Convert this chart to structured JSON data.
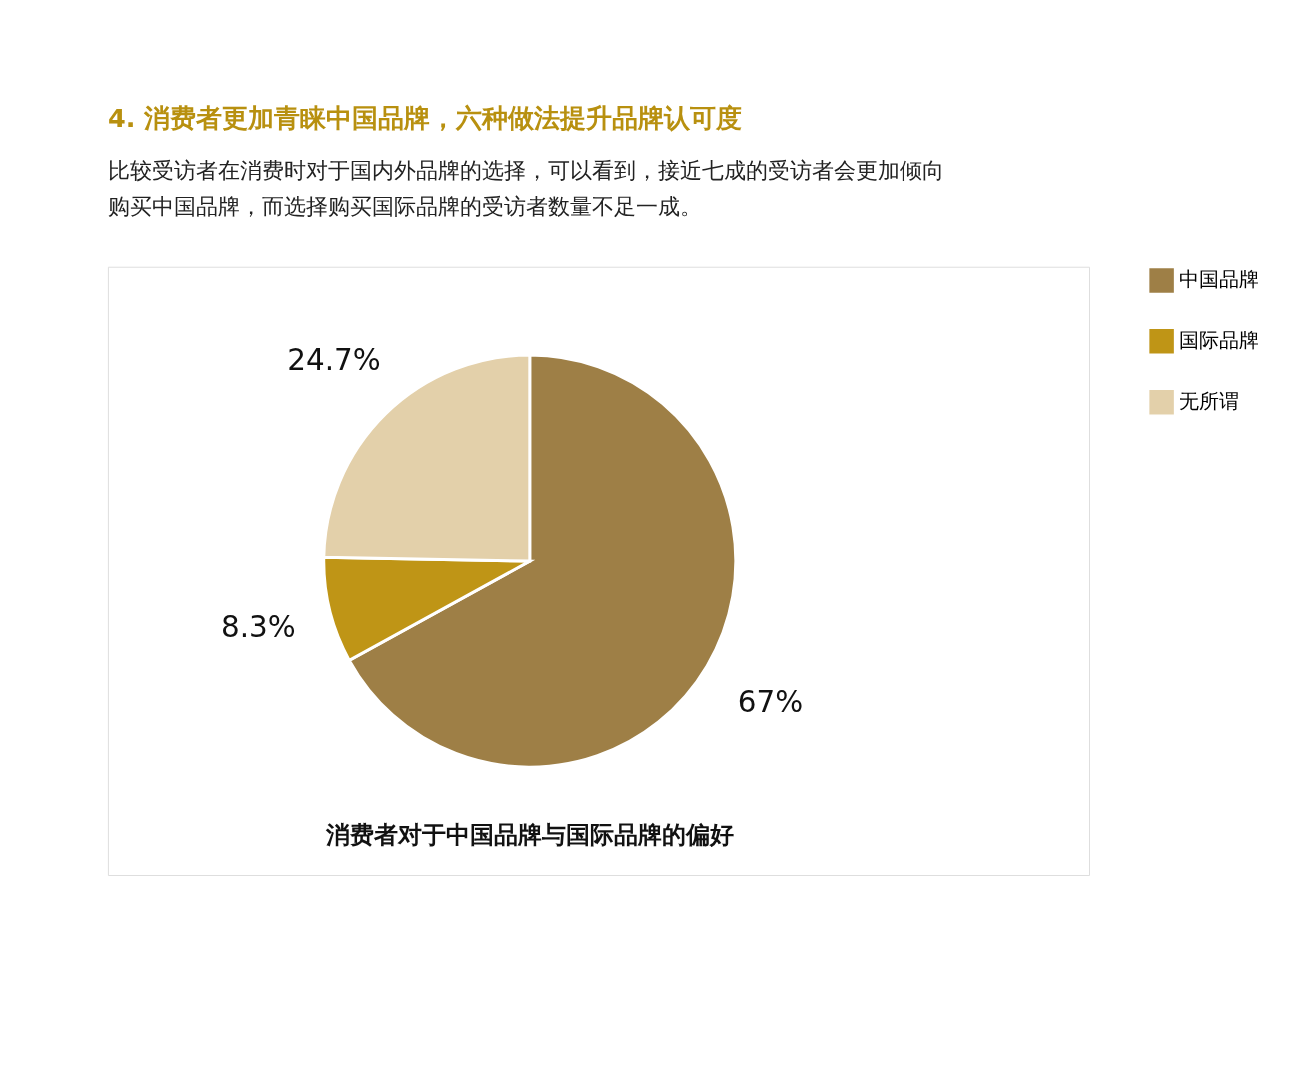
{
  "chart_data": {
    "type": "pie",
    "title": "4. 消费者更加青睐中国品牌，六种做法提升品牌认可度",
    "subtitle": "比较受访者在消费时对于国内外品牌的选择，可以看到，接近七成的受访者会更加倾向购买中国品牌，而选择购买国际品牌的受访者数量不足一成。",
    "categories": [
      "中国品牌",
      "国际品牌",
      "无所谓"
    ],
    "values": [
      67,
      8.3,
      24.7
    ],
    "colors": [
      "#9e7f46",
      "#bf9516",
      "#e3d0aa"
    ],
    "value_labels": [
      "67%",
      "8.3%",
      "24.7%"
    ],
    "annotations": [
      "消费者对于中国品牌与国际品牌的偏好"
    ],
    "legend": "right"
  }
}
